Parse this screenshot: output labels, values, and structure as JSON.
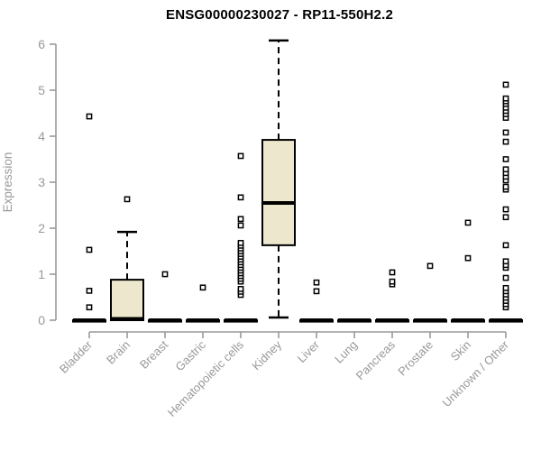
{
  "chart_data": {
    "type": "boxplot",
    "title": "ENSG00000230027 - RP11-550H2.2",
    "ylabel": "Expression",
    "xlabel": "",
    "ylim": [
      0,
      6
    ],
    "yticks": [
      0,
      1,
      2,
      3,
      4,
      5,
      6
    ],
    "grid": false,
    "legend": "none",
    "categories": [
      "Bladder",
      "Brain",
      "Breast",
      "Gastric",
      "Hematopoietic cells",
      "Kidney",
      "Liver",
      "Lung",
      "Pancreas",
      "Prostate",
      "Skin",
      "Unknown / Other"
    ],
    "boxes": [
      {
        "category": "Bladder",
        "q1": 0,
        "median": 0,
        "q3": 0,
        "whisker_low": 0,
        "whisker_high": 0,
        "outliers": [
          0.28,
          0.64,
          1.53,
          4.43
        ]
      },
      {
        "category": "Brain",
        "q1": 0,
        "median": 0.03,
        "q3": 0.88,
        "whisker_low": 0,
        "whisker_high": 1.92,
        "outliers": [
          2.63
        ]
      },
      {
        "category": "Breast",
        "q1": 0,
        "median": 0,
        "q3": 0,
        "whisker_low": 0,
        "whisker_high": 0,
        "outliers": [
          1.0
        ]
      },
      {
        "category": "Gastric",
        "q1": 0,
        "median": 0,
        "q3": 0,
        "whisker_low": 0,
        "whisker_high": 0,
        "outliers": [
          0.71
        ]
      },
      {
        "category": "Hematopoietic cells",
        "q1": 0,
        "median": 0,
        "q3": 0,
        "whisker_low": 0,
        "whisker_high": 0,
        "outliers": [
          0.55,
          0.62,
          0.68,
          0.84,
          0.9,
          0.96,
          1.02,
          1.08,
          1.14,
          1.2,
          1.26,
          1.32,
          1.38,
          1.44,
          1.5,
          1.56,
          1.62,
          1.68,
          2.06,
          2.2,
          2.67,
          3.57
        ]
      },
      {
        "category": "Kidney",
        "q1": 1.63,
        "median": 2.55,
        "q3": 3.92,
        "whisker_low": 0.06,
        "whisker_high": 6.08,
        "outliers": []
      },
      {
        "category": "Liver",
        "q1": 0,
        "median": 0,
        "q3": 0,
        "whisker_low": 0,
        "whisker_high": 0,
        "outliers": [
          0.63,
          0.82
        ]
      },
      {
        "category": "Lung",
        "q1": 0,
        "median": 0,
        "q3": 0,
        "whisker_low": 0,
        "whisker_high": 0,
        "outliers": []
      },
      {
        "category": "Pancreas",
        "q1": 0,
        "median": 0,
        "q3": 0,
        "whisker_low": 0,
        "whisker_high": 0,
        "outliers": [
          0.78,
          0.84,
          1.04
        ]
      },
      {
        "category": "Prostate",
        "q1": 0,
        "median": 0,
        "q3": 0,
        "whisker_low": 0,
        "whisker_high": 0,
        "outliers": [
          1.18
        ]
      },
      {
        "category": "Skin",
        "q1": 0,
        "median": 0,
        "q3": 0,
        "whisker_low": 0,
        "whisker_high": 0,
        "outliers": [
          1.35,
          2.12
        ]
      },
      {
        "category": "Unknown / Other",
        "q1": 0,
        "median": 0,
        "q3": 0,
        "whisker_low": 0,
        "whisker_high": 0,
        "outliers": [
          0.28,
          0.35,
          0.42,
          0.49,
          0.56,
          0.63,
          0.7,
          0.92,
          1.14,
          1.2,
          1.28,
          1.63,
          2.24,
          2.41,
          2.84,
          2.9,
          3.04,
          3.12,
          3.2,
          3.28,
          3.5,
          3.88,
          4.08,
          4.4,
          4.48,
          4.55,
          4.62,
          4.7,
          4.76,
          4.82,
          5.12
        ]
      }
    ],
    "colors": {
      "background": "#ffffff",
      "box_fill": "#ece7cd",
      "box_stroke": "#000000",
      "median": "#000000",
      "whisker": "#000000",
      "outlier_stroke": "#000000",
      "outlier_fill": "#ffffff",
      "axis": "#999999",
      "tick_label": "#999999",
      "title": "#000000"
    }
  }
}
